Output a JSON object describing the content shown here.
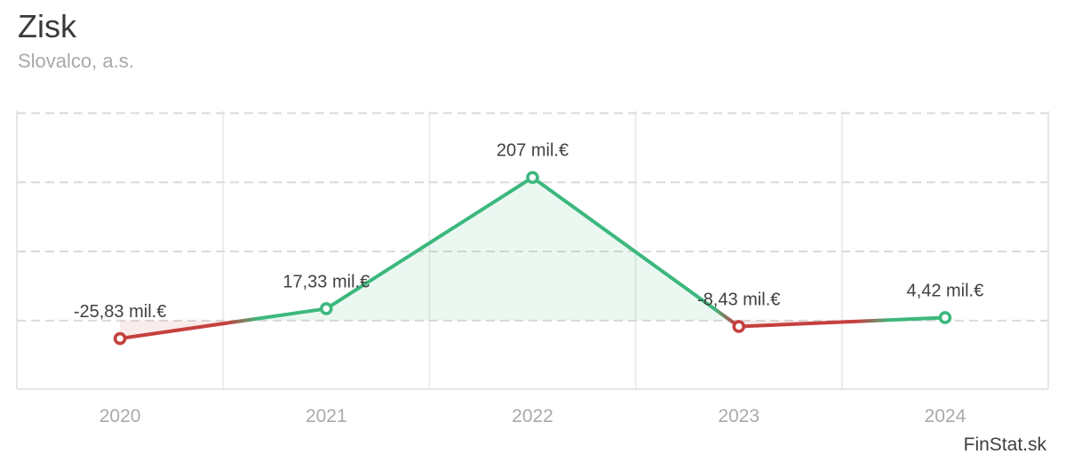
{
  "header": {
    "title": "Zisk",
    "subtitle": "Slovalco, a.s."
  },
  "footer": {
    "brand": "FinStat.sk"
  },
  "chart_data": {
    "type": "line",
    "title": "Zisk",
    "subtitle": "Slovalco, a.s.",
    "categories": [
      "2020",
      "2021",
      "2022",
      "2023",
      "2024"
    ],
    "values": [
      -25.83,
      17.33,
      207,
      -8.43,
      4.42
    ],
    "point_labels": [
      "-25,83 mil.€",
      "17,33 mil.€",
      "207 mil.€",
      "-8,43 mil.€",
      "4,42 mil.€"
    ],
    "unit": "mil.€",
    "xlabel": "",
    "ylabel": "",
    "ylim": [
      -99,
      303
    ],
    "y_gridlines": [
      0,
      100,
      200,
      300
    ],
    "y_axis_tick_labels_visible": false,
    "legend": "none",
    "grid": {
      "horizontal": "dashed",
      "vertical": "solid band separators"
    },
    "colors": {
      "positive": "#3cb87d",
      "negative": "#c5403e",
      "positive_fill": "rgba(60,184,125,0.10)",
      "negative_fill": "rgba(197,64,62,0.10)",
      "grid_dashed": "#dbdbdb",
      "grid_solid": "#ececec",
      "plot_border": "#e6e6e6",
      "point_label": "#404040",
      "axis_tick": "#aaaaaa",
      "marker_fill": "#ffffff"
    }
  }
}
